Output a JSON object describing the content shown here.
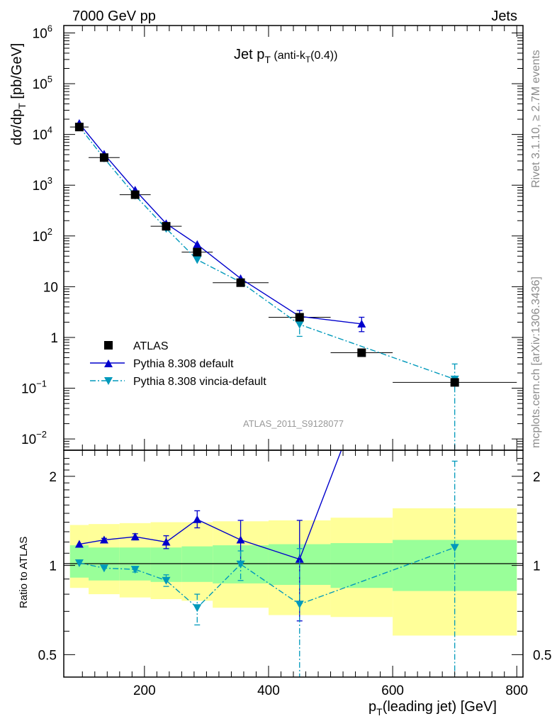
{
  "header": {
    "left": "7000 GeV pp",
    "right": "Jets"
  },
  "side_labels": {
    "rivet": "Rivet 3.1.10, ≥ 2.7M events",
    "mcplots": "mcplots.cern.ch [arXiv:1306.3436]"
  },
  "analysis_tag": "ATLAS_2011_S9128077",
  "colors": {
    "data": "#000000",
    "default": "#0000cc",
    "vincia": "#0099bb",
    "band_inner": "#99ff99",
    "band_outer": "#ffff99"
  },
  "chart_data": [
    {
      "type": "line",
      "name": "main",
      "title": "Jet p_T (anti-k_T(0.4))",
      "title_parts": {
        "main": "Jet p",
        "sub": "T",
        "after": " (anti-k",
        "sub2": "T",
        "end": "(0.4))"
      },
      "ylabel": "dσ/dp_T [pb/GeV]",
      "ylabel_parts": {
        "main": "dσ/dp",
        "sub": "T",
        "end": " [pb/GeV]"
      },
      "xlabel": "p_T(leading jet) [GeV]",
      "yscale": "log",
      "ylim": [
        0.006,
        1400000
      ],
      "xlim": [
        70,
        810
      ],
      "y_tick_labels": [
        {
          "v": 1000000,
          "mant": "10",
          "exp": "6"
        },
        {
          "v": 100000,
          "mant": "10",
          "exp": "5"
        },
        {
          "v": 10000,
          "mant": "10",
          "exp": "4"
        },
        {
          "v": 1000,
          "mant": "10",
          "exp": "3"
        },
        {
          "v": 100,
          "mant": "10",
          "exp": "2"
        },
        {
          "v": 10,
          "mant": "10",
          "exp": ""
        },
        {
          "v": 1,
          "mant": "1",
          "exp": ""
        },
        {
          "v": 0.1,
          "mant": "10",
          "exp": "−1"
        },
        {
          "v": 0.01,
          "mant": "10",
          "exp": "−2"
        }
      ],
      "legend_position": "bottom-left",
      "series": [
        {
          "name": "ATLAS",
          "marker": "square",
          "x": [
            95,
            135,
            185,
            235,
            285,
            355,
            450,
            550,
            700
          ],
          "xerr": [
            [
              80,
              110
            ],
            [
              110,
              160
            ],
            [
              160,
              210
            ],
            [
              210,
              260
            ],
            [
              260,
              310
            ],
            [
              310,
              400
            ],
            [
              400,
              500
            ],
            [
              500,
              600
            ],
            [
              600,
              800
            ]
          ],
          "y": [
            14000,
            3500,
            650,
            155,
            48,
            12,
            2.5,
            0.5,
            0.13
          ]
        },
        {
          "name": "Pythia 8.308 default",
          "marker": "triangle-up",
          "line": "solid",
          "x": [
            95,
            135,
            185,
            235,
            285,
            355,
            450,
            550
          ],
          "y": [
            16500,
            4100,
            800,
            175,
            68,
            14.5,
            2.6,
            1.85
          ],
          "yerr_low": [
            0,
            0,
            0,
            0,
            0,
            0,
            0.2,
            0.55
          ],
          "yerr_high": [
            0,
            0,
            0,
            0,
            0,
            0,
            0.8,
            0.65
          ]
        },
        {
          "name": "Pythia 8.308 vincia-default",
          "marker": "triangle-down",
          "line": "dashdot",
          "x": [
            95,
            135,
            185,
            235,
            285,
            355,
            450,
            700
          ],
          "y": [
            14200,
            3400,
            630,
            140,
            34,
            12.3,
            1.8,
            0.15
          ],
          "yerr_low": [
            0,
            0,
            0,
            0,
            0,
            1.0,
            0.75,
            0.145
          ],
          "yerr_high": [
            0,
            0,
            0,
            0,
            0,
            1.0,
            0.7,
            0.15
          ]
        }
      ]
    },
    {
      "type": "line",
      "name": "ratio",
      "ylabel": "Ratio to ATLAS",
      "xlabel": "p_T(leading jet) [GeV]",
      "xlabel_parts": {
        "main": "p",
        "sub": "T",
        "end": "(leading jet) [GeV]"
      },
      "yscale": "log",
      "ylim": [
        0.42,
        2.45
      ],
      "xlim": [
        70,
        810
      ],
      "y_ticks": [
        0.5,
        1,
        2
      ],
      "y_tick_labels": [
        "0.5",
        "1",
        "2"
      ],
      "x_ticks": [
        200,
        400,
        600,
        800
      ],
      "x_tick_labels": [
        "200",
        "400",
        "600",
        "800"
      ],
      "bands": {
        "edges": [
          [
            80,
            110
          ],
          [
            110,
            160
          ],
          [
            160,
            210
          ],
          [
            210,
            260
          ],
          [
            260,
            310
          ],
          [
            310,
            400
          ],
          [
            400,
            500
          ],
          [
            500,
            600
          ],
          [
            600,
            800
          ]
        ],
        "inner": [
          [
            0.91,
            1.17
          ],
          [
            0.89,
            1.15
          ],
          [
            0.89,
            1.15
          ],
          [
            0.88,
            1.15
          ],
          [
            0.88,
            1.16
          ],
          [
            0.87,
            1.17
          ],
          [
            0.86,
            1.18
          ],
          [
            0.84,
            1.19
          ],
          [
            0.82,
            1.22
          ]
        ],
        "outer": [
          [
            0.84,
            1.37
          ],
          [
            0.8,
            1.38
          ],
          [
            0.78,
            1.39
          ],
          [
            0.77,
            1.4
          ],
          [
            0.76,
            1.4
          ],
          [
            0.72,
            1.41
          ],
          [
            0.68,
            1.42
          ],
          [
            0.67,
            1.45
          ],
          [
            0.58,
            1.56
          ]
        ]
      },
      "series": [
        {
          "name": "Pythia 8.308 default",
          "marker": "triangle-up",
          "line": "solid",
          "x": [
            95,
            135,
            185,
            235,
            285,
            355,
            450,
            550
          ],
          "y": [
            1.18,
            1.22,
            1.25,
            1.2,
            1.43,
            1.22,
            1.05,
            3.7
          ],
          "yerr_low": [
            0,
            0.015,
            0.03,
            0.06,
            0.09,
            0.2,
            0.4,
            0
          ],
          "yerr_high": [
            0,
            0.015,
            0.03,
            0.06,
            0.1,
            0.2,
            0.37,
            0
          ]
        },
        {
          "name": "Pythia 8.308 vincia-default",
          "marker": "triangle-down",
          "line": "dashdot",
          "x": [
            95,
            135,
            185,
            235,
            285,
            355,
            450,
            700
          ],
          "y": [
            1.02,
            0.98,
            0.97,
            0.89,
            0.72,
            1.01,
            0.74,
            1.15
          ],
          "yerr_low": [
            0,
            0,
            0.02,
            0.04,
            0.09,
            0.12,
            0.36,
            0.75
          ],
          "yerr_high": [
            0,
            0,
            0.02,
            0.04,
            0.08,
            0.11,
            0.4,
            1.1
          ]
        }
      ]
    }
  ]
}
